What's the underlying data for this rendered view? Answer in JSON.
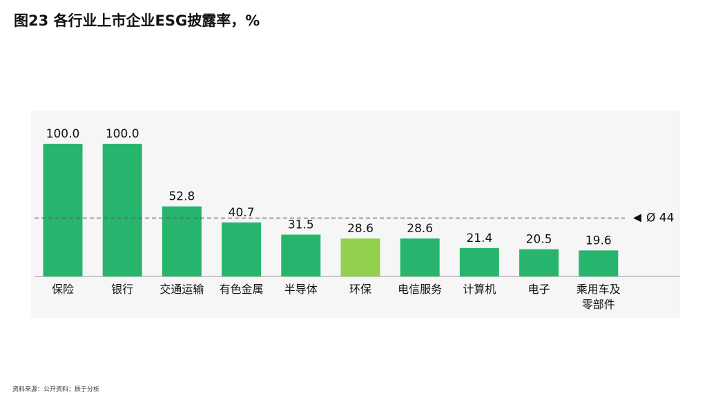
{
  "chart_data": {
    "type": "bar",
    "title": "图23 各行业上市企业ESG披露率，%",
    "categories": [
      "保险",
      "银行",
      "交通运输",
      "有色金属",
      "半导体",
      "环保",
      "电信服务",
      "计算机",
      "电子",
      "乘用车及零部件"
    ],
    "values": [
      100,
      100,
      52.8,
      40.7,
      31.5,
      28.6,
      28.6,
      21.4,
      20.5,
      19.6
    ],
    "value_labels": [
      "100.0",
      "100.0",
      "52.8",
      "40.7",
      "31.5",
      "28.6",
      "28.6",
      "21.4",
      "20.5",
      "19.6"
    ],
    "colors": [
      "#27b56e",
      "#27b56e",
      "#27b56e",
      "#27b56e",
      "#27b56e",
      "#92d050",
      "#27b56e",
      "#27b56e",
      "#27b56e",
      "#27b56e"
    ],
    "average": {
      "value": 44,
      "label": "Ø 44"
    },
    "source": "资料来源：公开资料；辰于分析"
  }
}
